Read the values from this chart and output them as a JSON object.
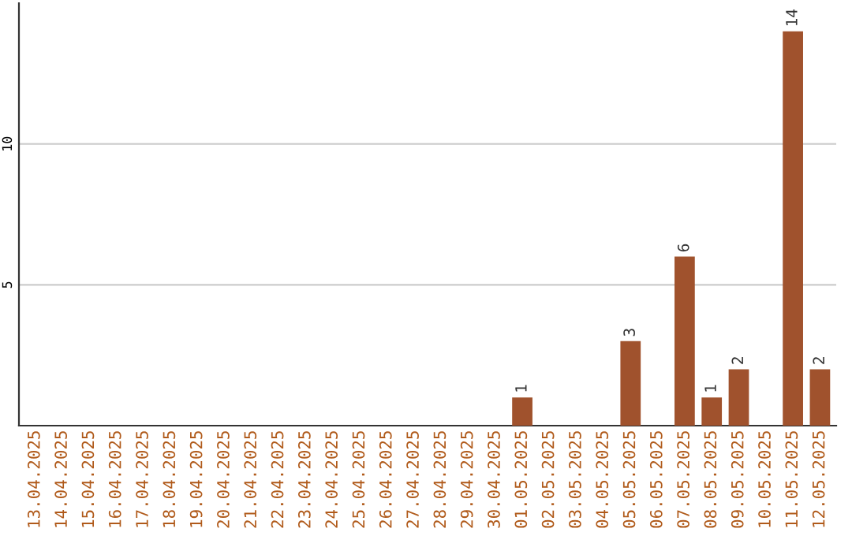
{
  "chart_data": {
    "type": "bar",
    "categories": [
      "13.04.2025",
      "14.04.2025",
      "15.04.2025",
      "16.04.2025",
      "17.04.2025",
      "18.04.2025",
      "19.04.2025",
      "20.04.2025",
      "21.04.2025",
      "22.04.2025",
      "23.04.2025",
      "24.04.2025",
      "25.04.2025",
      "26.04.2025",
      "27.04.2025",
      "28.04.2025",
      "29.04.2025",
      "30.04.2025",
      "01.05.2025",
      "02.05.2025",
      "03.05.2025",
      "04.05.2025",
      "05.05.2025",
      "06.05.2025",
      "07.05.2025",
      "08.05.2025",
      "09.05.2025",
      "10.05.2025",
      "11.05.2025",
      "12.05.2025"
    ],
    "values": [
      0,
      0,
      0,
      0,
      0,
      0,
      0,
      0,
      0,
      0,
      0,
      0,
      0,
      0,
      0,
      0,
      0,
      0,
      1,
      0,
      0,
      0,
      3,
      0,
      6,
      1,
      2,
      0,
      14,
      2
    ],
    "value_labels": [
      null,
      null,
      null,
      null,
      null,
      null,
      null,
      null,
      null,
      null,
      null,
      null,
      null,
      null,
      null,
      null,
      null,
      null,
      "1",
      null,
      null,
      null,
      "3",
      null,
      "6",
      "1",
      "2",
      null,
      "14",
      "2"
    ],
    "color": "#a0522d",
    "ylim": [
      0,
      15
    ],
    "yticks": [
      5,
      10
    ],
    "grid": "y"
  }
}
